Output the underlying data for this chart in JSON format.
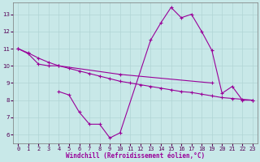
{
  "xlabel": "Windchill (Refroidissement éolien,°C)",
  "background_color": "#c8e8e8",
  "grid_color": "#b0d4d4",
  "line_color": "#990099",
  "xlim": [
    -0.5,
    23.5
  ],
  "ylim": [
    5.5,
    13.7
  ],
  "yticks": [
    6,
    7,
    8,
    9,
    10,
    11,
    12,
    13
  ],
  "xticks": [
    0,
    1,
    2,
    3,
    4,
    5,
    6,
    7,
    8,
    9,
    10,
    11,
    12,
    13,
    14,
    15,
    16,
    17,
    18,
    19,
    20,
    21,
    22,
    23
  ],
  "series1": [
    [
      0,
      11.0
    ],
    [
      1,
      10.7
    ],
    [
      2,
      10.1
    ],
    [
      3,
      10.0
    ],
    [
      4,
      10.0
    ],
    [
      10,
      9.5
    ],
    [
      19,
      9.0
    ]
  ],
  "series2": [
    [
      0,
      11.0
    ],
    [
      1,
      10.75
    ],
    [
      2,
      10.45
    ],
    [
      3,
      10.2
    ],
    [
      4,
      10.0
    ],
    [
      5,
      9.85
    ],
    [
      6,
      9.7
    ],
    [
      7,
      9.55
    ],
    [
      8,
      9.4
    ],
    [
      9,
      9.25
    ],
    [
      10,
      9.1
    ],
    [
      11,
      9.0
    ],
    [
      12,
      8.9
    ],
    [
      13,
      8.8
    ],
    [
      14,
      8.7
    ],
    [
      15,
      8.6
    ],
    [
      16,
      8.5
    ],
    [
      17,
      8.45
    ],
    [
      18,
      8.35
    ],
    [
      19,
      8.25
    ],
    [
      20,
      8.15
    ],
    [
      21,
      8.1
    ],
    [
      22,
      8.05
    ],
    [
      23,
      8.0
    ]
  ],
  "series3": [
    [
      4,
      8.5
    ],
    [
      5,
      8.3
    ],
    [
      6,
      7.3
    ],
    [
      7,
      6.6
    ],
    [
      8,
      6.6
    ],
    [
      9,
      5.8
    ],
    [
      10,
      6.1
    ],
    [
      13,
      11.5
    ],
    [
      14,
      12.5
    ],
    [
      15,
      13.4
    ],
    [
      16,
      12.8
    ],
    [
      17,
      13.0
    ],
    [
      18,
      12.0
    ],
    [
      19,
      10.9
    ],
    [
      20,
      8.4
    ],
    [
      21,
      8.8
    ],
    [
      22,
      8.0
    ],
    [
      23,
      8.0
    ]
  ]
}
